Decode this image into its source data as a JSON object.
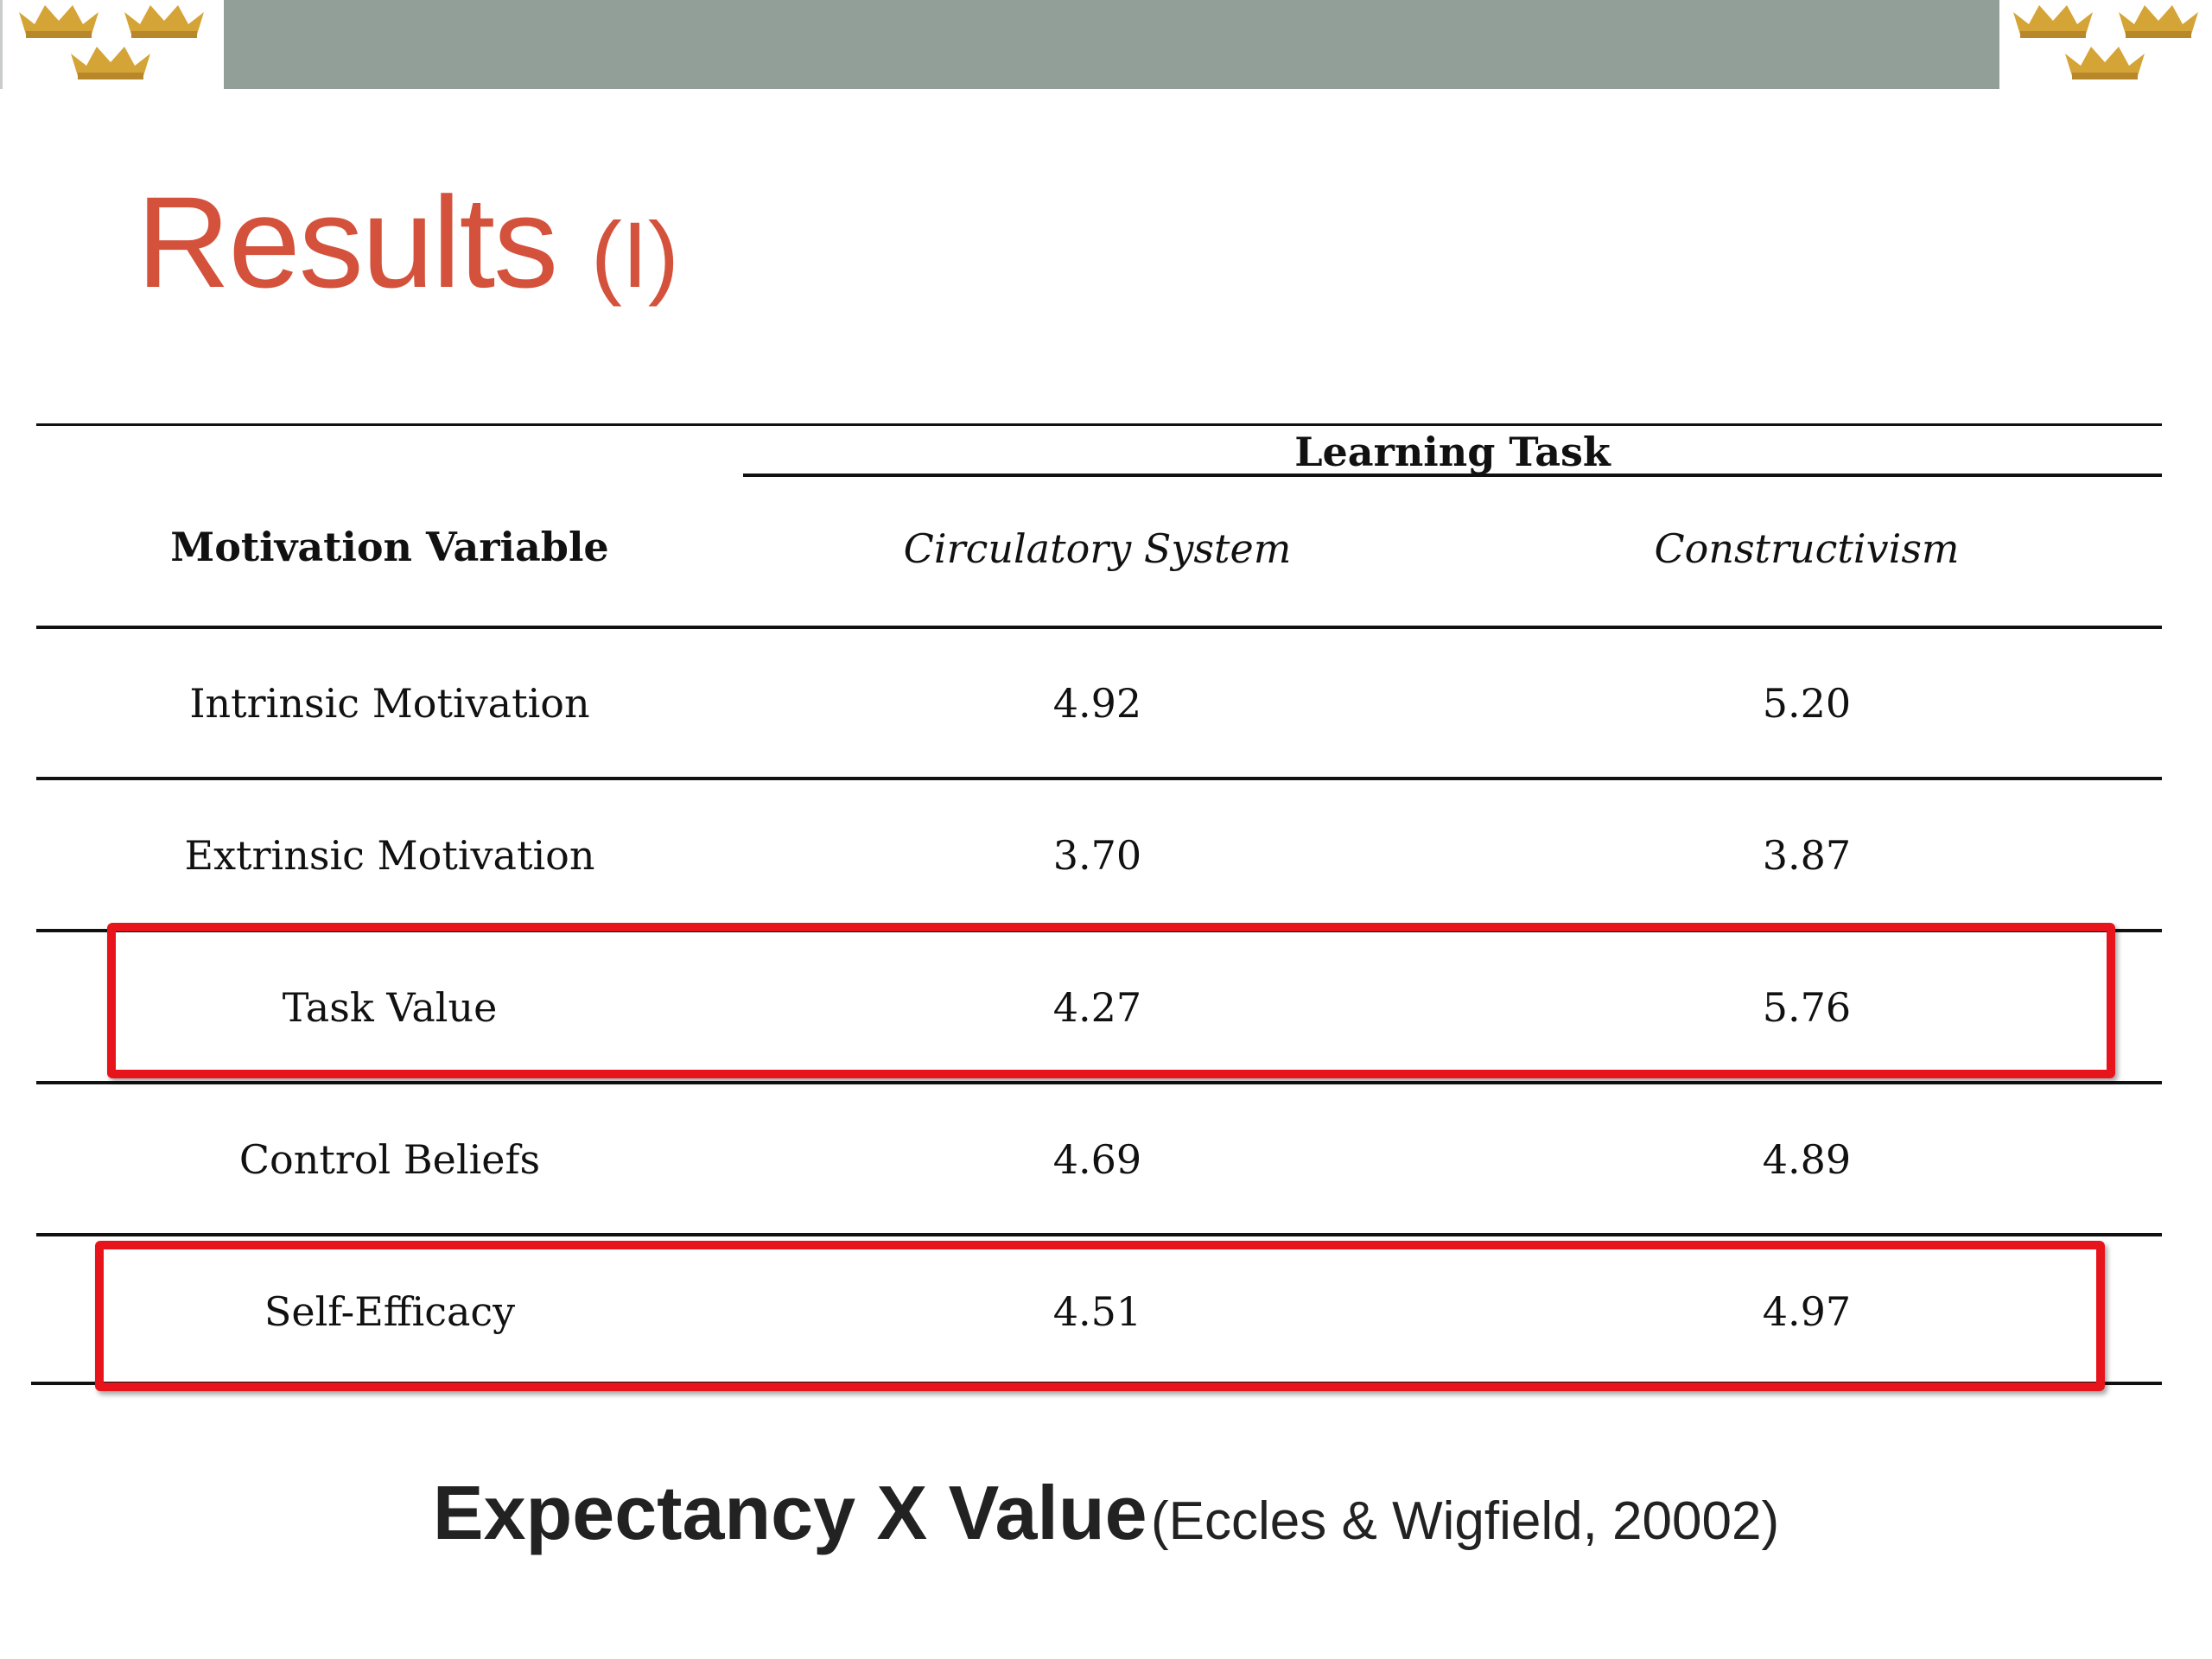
{
  "slide": {
    "title_main": "Results",
    "title_sub": "(I)"
  },
  "table": {
    "group_header": "Learning Task",
    "row_header": "Motivation Variable",
    "columns": [
      "Circulatory System",
      "Constructivism"
    ],
    "rows": [
      {
        "label": "Intrinsic Motivation",
        "values": [
          "4.92",
          "5.20"
        ],
        "highlighted": false
      },
      {
        "label": "Extrinsic Motivation",
        "values": [
          "3.70",
          "3.87"
        ],
        "highlighted": false
      },
      {
        "label": "Task Value",
        "values": [
          "4.27",
          "5.76"
        ],
        "highlighted": true
      },
      {
        "label": "Control Beliefs",
        "values": [
          "4.69",
          "4.89"
        ],
        "highlighted": false
      },
      {
        "label": "Self-Efficacy",
        "values": [
          "4.51",
          "4.97"
        ],
        "highlighted": true
      }
    ]
  },
  "footer": {
    "main": "Expectancy X Value",
    "citation": "(Eccles & Wigfield, 20002)"
  },
  "colors": {
    "title": "#d4523c",
    "topbar": "#919f98",
    "highlight": "#e8141b",
    "crown": "#d4a437"
  },
  "icons": [
    "crown-icon"
  ]
}
